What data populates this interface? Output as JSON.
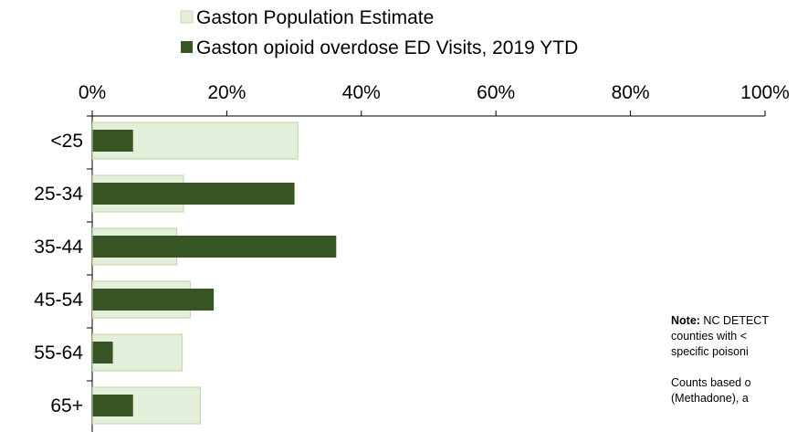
{
  "chart_data": {
    "type": "bar",
    "orientation": "horizontal",
    "categories": [
      "<25",
      "25-34",
      "35-44",
      "45-54",
      "55-64",
      "65+"
    ],
    "series": [
      {
        "name": "Gaston Population Estimate",
        "values": [
          30.5,
          13.5,
          12.5,
          14.5,
          13.3,
          16.0
        ],
        "color": "#e3eedb",
        "stroke": "#c3dca6"
      },
      {
        "name": "Gaston opioid overdose ED Visits, 2019 YTD",
        "values": [
          6.0,
          30.0,
          36.2,
          18.0,
          3.0,
          6.0
        ],
        "color": "#375623"
      }
    ],
    "xlim": [
      0,
      100
    ],
    "x_ticks": [
      "0%",
      "20%",
      "40%",
      "60%",
      "80%",
      "100%"
    ],
    "x_tick_values": [
      0,
      20,
      40,
      60,
      80,
      100
    ],
    "legend_position": "top",
    "grid": false
  },
  "note": {
    "label": "Note:",
    "line1_rest": " NC DETECT",
    "line2": "counties with <",
    "line3": "specific poisoni",
    "line4": "Counts based o",
    "line5": "(Methadone), a"
  }
}
